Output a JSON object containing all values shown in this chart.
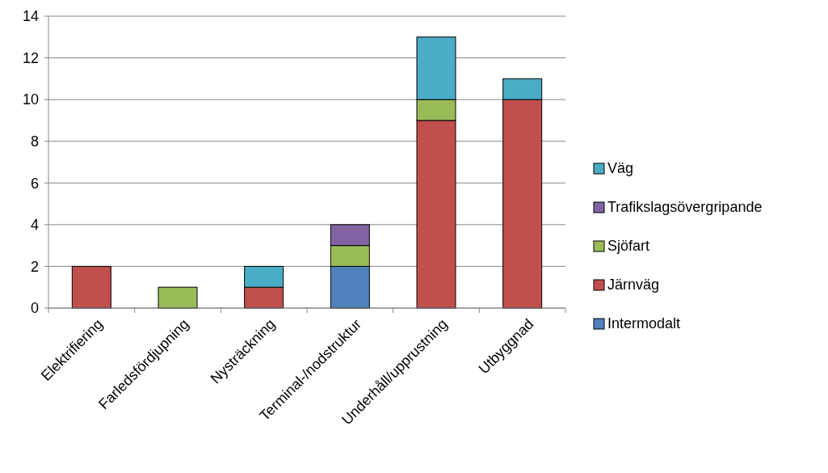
{
  "chart_data": {
    "type": "bar",
    "stacked": true,
    "categories": [
      "Elektrifiering",
      "Farledsfördjupning",
      "Nysträckning",
      "Terminal-/nodstruktur",
      "Underhåll/upprustning",
      "Utbyggnad"
    ],
    "series": [
      {
        "name": "Intermodalt",
        "color": "#4f81bd",
        "values": [
          null,
          null,
          null,
          2,
          null,
          null
        ]
      },
      {
        "name": "Järnväg",
        "color": "#c0504d",
        "values": [
          2,
          null,
          1,
          null,
          9,
          10
        ]
      },
      {
        "name": "Sjöfart",
        "color": "#9bbb59",
        "values": [
          null,
          1,
          null,
          1,
          1,
          null
        ]
      },
      {
        "name": "Trafikslagsövergripande",
        "color": "#8064a2",
        "values": [
          null,
          null,
          null,
          1,
          null,
          null
        ]
      },
      {
        "name": "Väg",
        "color": "#4bacc6",
        "values": [
          null,
          null,
          1,
          null,
          3,
          1
        ]
      }
    ],
    "ylim": [
      0,
      14
    ],
    "yticks": [
      0,
      2,
      4,
      6,
      8,
      10,
      12,
      14
    ],
    "grid": "y",
    "legend": "right"
  }
}
